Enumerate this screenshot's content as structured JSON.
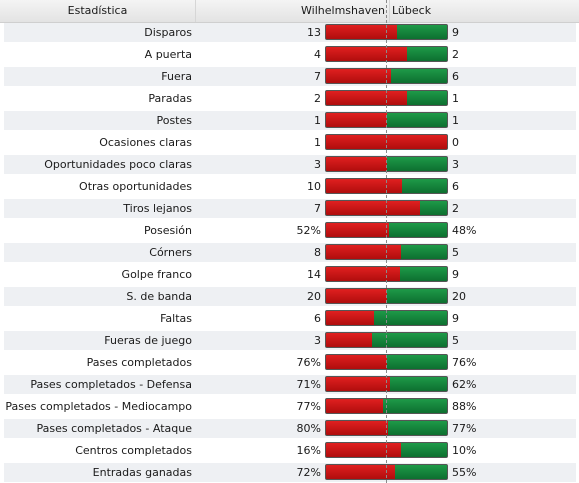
{
  "header": {
    "stat": "Estadística",
    "home": "Wilhelmshaven",
    "away": "Lübeck"
  },
  "colors": {
    "home": "#c81414",
    "away": "#117e3a"
  },
  "rows": [
    {
      "label": "Disparos",
      "home": "13",
      "away": "9",
      "home_share": 0.59
    },
    {
      "label": "A puerta",
      "home": "4",
      "away": "2",
      "home_share": 0.67
    },
    {
      "label": "Fuera",
      "home": "7",
      "away": "6",
      "home_share": 0.54
    },
    {
      "label": "Paradas",
      "home": "2",
      "away": "1",
      "home_share": 0.67
    },
    {
      "label": "Postes",
      "home": "1",
      "away": "1",
      "home_share": 0.5
    },
    {
      "label": "Ocasiones claras",
      "home": "1",
      "away": "0",
      "home_share": 1.0
    },
    {
      "label": "Oportunidades poco claras",
      "home": "3",
      "away": "3",
      "home_share": 0.5
    },
    {
      "label": "Otras oportunidades",
      "home": "10",
      "away": "6",
      "home_share": 0.63
    },
    {
      "label": "Tiros lejanos",
      "home": "7",
      "away": "2",
      "home_share": 0.78
    },
    {
      "label": "Posesión",
      "home": "52%",
      "away": "48%",
      "home_share": 0.52
    },
    {
      "label": "Córners",
      "home": "8",
      "away": "5",
      "home_share": 0.62
    },
    {
      "label": "Golpe franco",
      "home": "14",
      "away": "9",
      "home_share": 0.61
    },
    {
      "label": "S. de banda",
      "home": "20",
      "away": "20",
      "home_share": 0.5
    },
    {
      "label": "Faltas",
      "home": "6",
      "away": "9",
      "home_share": 0.4
    },
    {
      "label": "Fueras de juego",
      "home": "3",
      "away": "5",
      "home_share": 0.38
    },
    {
      "label": "Pases completados",
      "home": "76%",
      "away": "76%",
      "home_share": 0.5
    },
    {
      "label": "Pases completados - Defensa",
      "home": "71%",
      "away": "62%",
      "home_share": 0.53
    },
    {
      "label": "Pases completados - Mediocampo",
      "home": "77%",
      "away": "88%",
      "home_share": 0.47
    },
    {
      "label": "Pases completados - Ataque",
      "home": "80%",
      "away": "77%",
      "home_share": 0.51
    },
    {
      "label": "Centros completados",
      "home": "16%",
      "away": "10%",
      "home_share": 0.62
    },
    {
      "label": "Entradas ganadas",
      "home": "72%",
      "away": "55%",
      "home_share": 0.57
    }
  ]
}
